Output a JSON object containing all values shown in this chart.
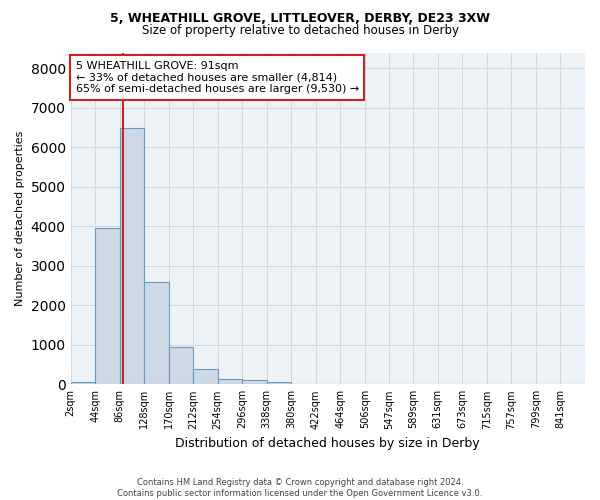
{
  "title1": "5, WHEATHILL GROVE, LITTLEOVER, DERBY, DE23 3XW",
  "title2": "Size of property relative to detached houses in Derby",
  "xlabel": "Distribution of detached houses by size in Derby",
  "ylabel": "Number of detached properties",
  "footer1": "Contains HM Land Registry data © Crown copyright and database right 2024.",
  "footer2": "Contains public sector information licensed under the Open Government Licence v3.0.",
  "annotation_line1": "5 WHEATHILL GROVE: 91sqm",
  "annotation_line2": "← 33% of detached houses are smaller (4,814)",
  "annotation_line3": "65% of semi-detached houses are larger (9,530) →",
  "bar_color": "#cdd9e5",
  "bar_edge_color": "#6a9bbf",
  "grid_color": "#d0d8e0",
  "red_line_color": "#cc2222",
  "annotation_box_edge_color": "#cc2222",
  "bin_labels": [
    "2sqm",
    "44sqm",
    "86sqm",
    "128sqm",
    "170sqm",
    "212sqm",
    "254sqm",
    "296sqm",
    "338sqm",
    "380sqm",
    "422sqm",
    "464sqm",
    "506sqm",
    "547sqm",
    "589sqm",
    "631sqm",
    "673sqm",
    "715sqm",
    "757sqm",
    "799sqm",
    "841sqm"
  ],
  "bin_left_edges": [
    2,
    44,
    86,
    128,
    170,
    212,
    254,
    296,
    338,
    380,
    422,
    464,
    506,
    547,
    589,
    631,
    673,
    715,
    757,
    799,
    841
  ],
  "bin_width": 42,
  "bar_heights": [
    50,
    3950,
    6500,
    2600,
    950,
    380,
    130,
    100,
    60,
    0,
    0,
    0,
    0,
    0,
    0,
    0,
    0,
    0,
    0,
    0,
    0
  ],
  "ylim": [
    0,
    8400
  ],
  "yticks": [
    0,
    1000,
    2000,
    3000,
    4000,
    5000,
    6000,
    7000,
    8000
  ],
  "xlim_left": 2,
  "xlim_right": 883,
  "property_size_x": 91,
  "background_color": "#edf2f7",
  "plot_bg_color": "#edf2f7"
}
